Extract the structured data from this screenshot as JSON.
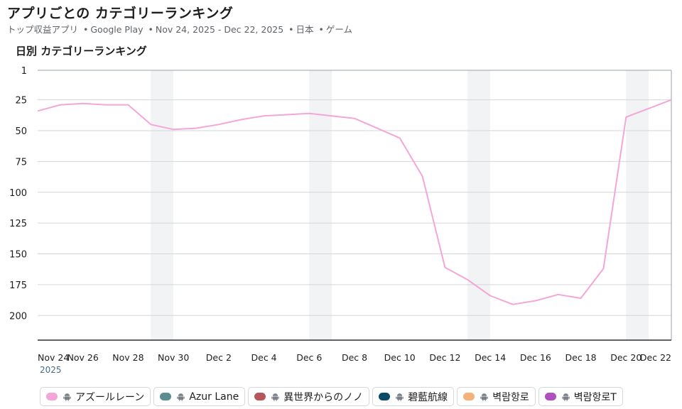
{
  "header": {
    "title": "アプリごとの カテゴリーランキング",
    "subtitle": {
      "ranking_type": "トップ収益アプリ",
      "store": "Google Play",
      "date_range": "Nov 24, 2025 - Dec 22, 2025",
      "country": "日本",
      "category": "ゲーム",
      "separator": "•"
    }
  },
  "chart_heading": "日別 カテゴリーランキング",
  "chart_data": {
    "type": "line",
    "title": "日別 カテゴリーランキング",
    "y_axis": {
      "inverted": true,
      "ticks": [
        1,
        25,
        50,
        75,
        100,
        125,
        150,
        175,
        200
      ],
      "range": [
        1,
        220
      ]
    },
    "x_axis": {
      "tick_labels": [
        "Nov 24",
        "Nov 26",
        "Nov 28",
        "Nov 30",
        "Dec 2",
        "Dec 4",
        "Dec 6",
        "Dec 8",
        "Dec 10",
        "Dec 12",
        "Dec 14",
        "Dec 16",
        "Dec 18",
        "Dec 20",
        "Dec 22"
      ],
      "year_label": "2025"
    },
    "weekend_bands": [
      [
        "Nov 29",
        "Nov 30"
      ],
      [
        "Dec 6",
        "Dec 7"
      ],
      [
        "Dec 13",
        "Dec 14"
      ],
      [
        "Dec 20",
        "Dec 21"
      ]
    ],
    "grid": true,
    "dates": [
      "Nov 24",
      "Nov 25",
      "Nov 26",
      "Nov 27",
      "Nov 28",
      "Nov 29",
      "Nov 30",
      "Dec 1",
      "Dec 2",
      "Dec 3",
      "Dec 4",
      "Dec 5",
      "Dec 6",
      "Dec 7",
      "Dec 8",
      "Dec 9",
      "Dec 10",
      "Dec 11",
      "Dec 12",
      "Dec 13",
      "Dec 14",
      "Dec 15",
      "Dec 16",
      "Dec 17",
      "Dec 18",
      "Dec 19",
      "Dec 20",
      "Dec 21",
      "Dec 22"
    ],
    "series": [
      {
        "name": "アズールレーン",
        "color": "#f4a6d7",
        "values": [
          34,
          29,
          28,
          29,
          29,
          45,
          49,
          48,
          45,
          41,
          38,
          37,
          36,
          38,
          40,
          48,
          56,
          87,
          161,
          171,
          184,
          191,
          188,
          183,
          186,
          162,
          39,
          32,
          25
        ]
      }
    ]
  },
  "legend": [
    {
      "name": "アズールレーン",
      "color": "#f4a6d7",
      "icon": "android-icon"
    },
    {
      "name": "Azur Lane",
      "color": "#5b8f8f",
      "icon": "android-icon"
    },
    {
      "name": "異世界からのノノ",
      "color": "#b5555c",
      "icon": "android-icon"
    },
    {
      "name": "碧藍航線",
      "color": "#0c4a66",
      "icon": "android-icon"
    },
    {
      "name": "벽람항로",
      "color": "#f2b27a",
      "icon": "android-icon"
    },
    {
      "name": "벽람항로T",
      "color": "#b04fc0",
      "icon": "android-icon"
    }
  ]
}
